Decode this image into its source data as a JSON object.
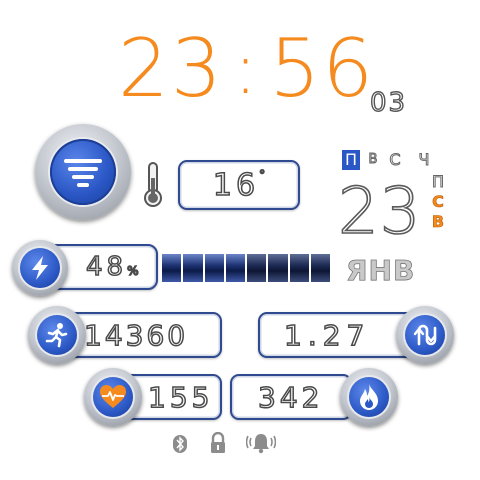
{
  "time": {
    "hours": "23",
    "separator": ":",
    "minutes": "56",
    "seconds": "03"
  },
  "weather": {
    "temperature": "16",
    "unit": "°"
  },
  "calendar": {
    "weekdays_row1": [
      "П",
      "В",
      "С",
      "Ч"
    ],
    "weekdays_row2": [
      "П",
      "С",
      "В"
    ],
    "active_day": "П",
    "date": "23",
    "month": "ЯНВ"
  },
  "battery": {
    "percent": "48",
    "unit": "%",
    "level": 0.48
  },
  "steps": {
    "value": "14360"
  },
  "distance": {
    "value": "1.27"
  },
  "heart_rate": {
    "value": "155"
  },
  "calories": {
    "value": "342"
  },
  "colors": {
    "accent": "#f58a1f",
    "blue": "#2b58c6",
    "frame": "#2f4a8e"
  },
  "icons": [
    "weather-fog-icon",
    "thermometer-icon",
    "lightning-icon",
    "running-icon",
    "distance-arrows-icon",
    "heart-rate-icon",
    "flame-icon",
    "bluetooth-icon",
    "lock-icon",
    "alarm-bell-icon"
  ]
}
